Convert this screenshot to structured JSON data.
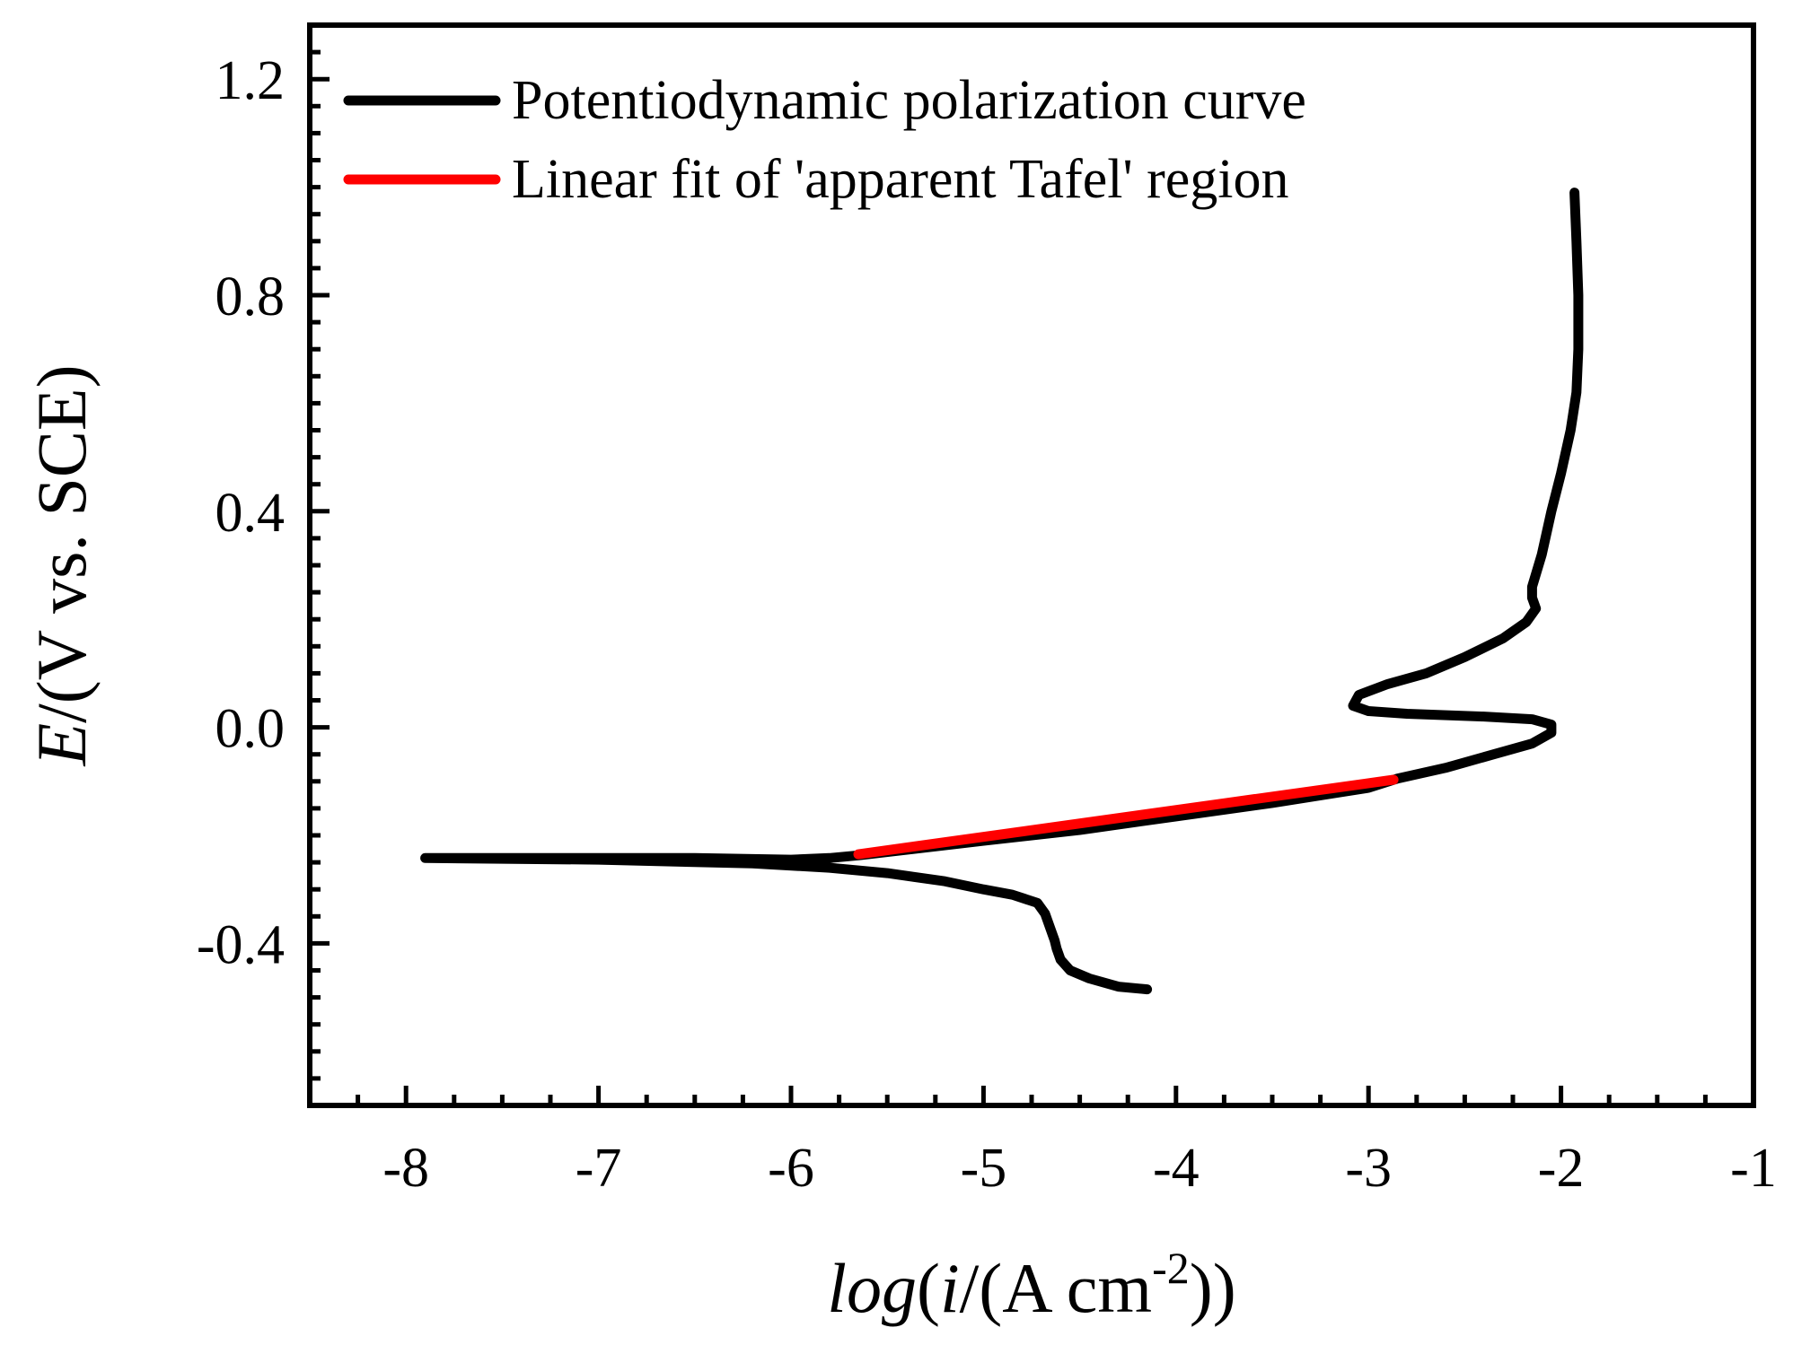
{
  "chart_data": {
    "type": "line",
    "xlabel": {
      "italic_prefix": "log",
      "open": "(",
      "italic_var": "i",
      "unit_main": "/(A cm",
      "superscript": "-2",
      "close": "))"
    },
    "ylabel": {
      "italic_var": "E",
      "rest": "/(V vs. SCE)"
    },
    "xlim": [
      -8.5,
      -1
    ],
    "ylim": [
      -0.7,
      1.3
    ],
    "xticks": [
      -8,
      -7,
      -6,
      -5,
      -4,
      -3,
      -2,
      -1
    ],
    "xtick_labels": [
      "-8",
      "-7",
      "-6",
      "-5",
      "-4",
      "-3",
      "-2",
      "-1"
    ],
    "yticks": [
      -0.4,
      0.0,
      0.4,
      0.8,
      1.2
    ],
    "ytick_labels": [
      "-0.4",
      "0.0",
      "0.4",
      "0.8",
      "1.2"
    ],
    "legend_position": "top-left",
    "series": [
      {
        "name": "Potentiodynamic polarization curve",
        "color": "#000000",
        "x": [
          -4.15,
          -4.3,
          -4.45,
          -4.55,
          -4.6,
          -4.62,
          -4.63,
          -4.65,
          -4.68,
          -4.72,
          -4.85,
          -5.0,
          -5.2,
          -5.5,
          -5.8,
          -6.2,
          -7.0,
          -7.9,
          -6.5,
          -6.0,
          -5.8,
          -5.65,
          -5.0,
          -4.5,
          -4.0,
          -3.5,
          -3.0,
          -2.85,
          -2.6,
          -2.35,
          -2.15,
          -2.05,
          -2.05,
          -2.15,
          -2.4,
          -2.8,
          -3.0,
          -3.08,
          -3.05,
          -2.9,
          -2.7,
          -2.5,
          -2.3,
          -2.18,
          -2.13,
          -2.15,
          -2.15,
          -2.1,
          -2.05,
          -2.0,
          -1.95,
          -1.92,
          -1.91,
          -1.91,
          -1.92,
          -1.93
        ],
        "y": [
          -0.485,
          -0.48,
          -0.465,
          -0.45,
          -0.43,
          -0.41,
          -0.395,
          -0.375,
          -0.345,
          -0.325,
          -0.31,
          -0.3,
          -0.285,
          -0.27,
          -0.26,
          -0.252,
          -0.245,
          -0.242,
          -0.242,
          -0.245,
          -0.242,
          -0.237,
          -0.21,
          -0.19,
          -0.165,
          -0.14,
          -0.112,
          -0.095,
          -0.075,
          -0.05,
          -0.03,
          -0.01,
          0.005,
          0.015,
          0.02,
          0.025,
          0.03,
          0.04,
          0.06,
          0.08,
          0.1,
          0.13,
          0.165,
          0.195,
          0.22,
          0.24,
          0.26,
          0.32,
          0.4,
          0.47,
          0.55,
          0.62,
          0.7,
          0.8,
          0.9,
          0.99
        ]
      },
      {
        "name": "Linear fit of 'apparent Tafel' region",
        "color": "#ff0000",
        "x": [
          -5.65,
          -2.87
        ],
        "y": [
          -0.235,
          -0.097
        ]
      }
    ]
  }
}
